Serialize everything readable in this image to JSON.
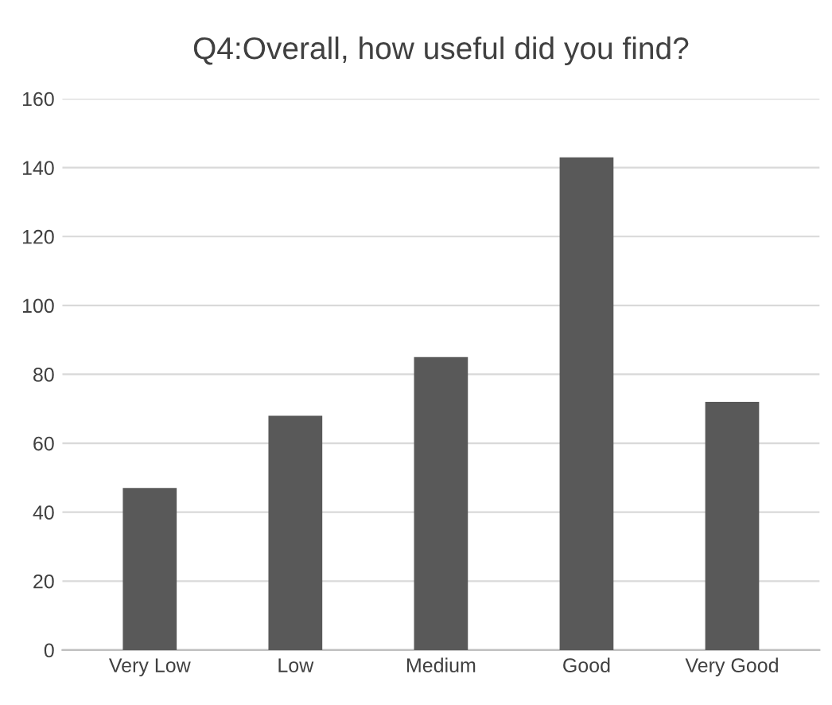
{
  "chart_data": {
    "type": "bar",
    "title": "Q4:Overall, how useful did you find?",
    "categories": [
      "Very Low",
      "Low",
      "Medium",
      "Good",
      "Very Good"
    ],
    "values": [
      47,
      68,
      85,
      143,
      72
    ],
    "color": "#595959",
    "ylim": [
      0,
      160
    ],
    "yticks": [
      0,
      20,
      40,
      60,
      80,
      100,
      120,
      140,
      160
    ],
    "grid": "y"
  }
}
